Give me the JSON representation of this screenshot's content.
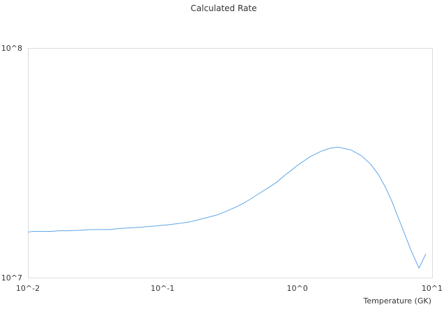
{
  "chart_data": {
    "type": "line",
    "title": "Calculated Rate",
    "xlabel": "Temperature (GK)",
    "ylabel": "",
    "x_scale": "log",
    "y_scale": "log",
    "xlim": [
      0.01,
      10
    ],
    "ylim": [
      10000000,
      100000000
    ],
    "x_tick_labels": [
      "10^-2",
      "10^-1",
      "10^0",
      "10^1"
    ],
    "y_tick_labels": [
      "10^7",
      "10^8"
    ],
    "grid": false,
    "legend": "none",
    "line_color": "#5DA5E8",
    "series": [
      {
        "x": [
          0.01,
          0.011,
          0.013,
          0.015,
          0.017,
          0.02,
          0.025,
          0.03,
          0.04,
          0.05,
          0.06,
          0.07,
          0.08,
          0.09,
          0.1,
          0.11,
          0.12,
          0.13,
          0.14,
          0.15,
          0.16,
          0.18,
          0.2,
          0.25,
          0.3,
          0.35,
          0.4,
          0.45,
          0.5,
          0.6,
          0.7,
          0.8,
          0.9,
          1.0,
          1.25,
          1.5,
          1.75,
          2.0,
          2.5,
          3.0,
          3.5,
          4.0,
          4.5,
          5.0,
          6.0,
          7.0,
          8.0,
          9.0
        ],
        "y": [
          15800000,
          15900000,
          15900000,
          15900000,
          16000000,
          16000000,
          16100000,
          16200000,
          16200000,
          16400000,
          16500000,
          16600000,
          16700000,
          16800000,
          16900000,
          17000000,
          17100000,
          17200000,
          17300000,
          17400000,
          17500000,
          17800000,
          18100000,
          18700000,
          19500000,
          20300000,
          21100000,
          22000000,
          22900000,
          24500000,
          26000000,
          27800000,
          29300000,
          30800000,
          33700000,
          35500000,
          36600000,
          37000000,
          36000000,
          33900000,
          31200000,
          28100000,
          24800000,
          21700000,
          16500000,
          13100000,
          11000000,
          12700000
        ]
      }
    ]
  }
}
